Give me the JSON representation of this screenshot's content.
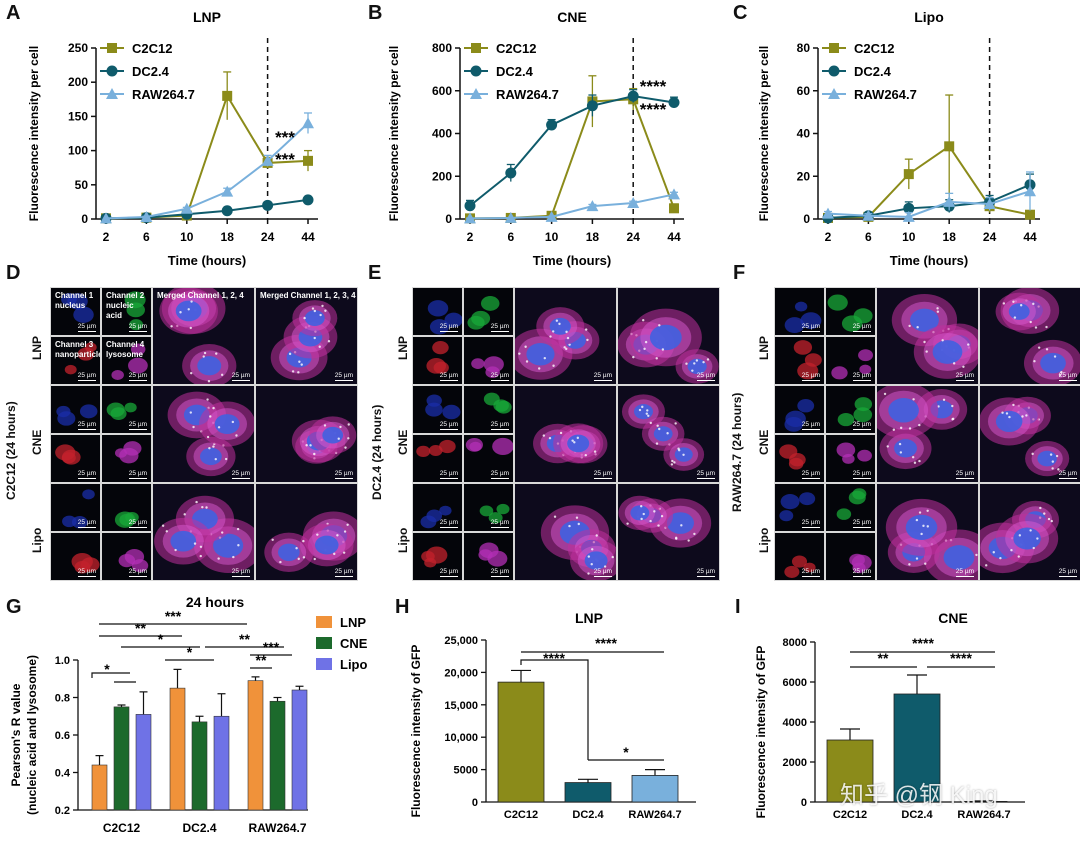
{
  "panels": {
    "A": "A",
    "B": "B",
    "C": "C",
    "D": "D",
    "E": "E",
    "F": "F",
    "G": "G",
    "H": "H",
    "I": "I"
  },
  "micro": {
    "D": {
      "side_label": "C2C12 (24 hours)",
      "rows": [
        "LNP",
        "CNE",
        "Lipo"
      ],
      "captions": [
        "Channel 1 nucleus",
        "Channel 2 nucleic acid",
        "Merged Channel 1, 2, 4",
        "Merged Channel 1, 2, 3, 4",
        "Channel 3 nanoparticle",
        "Channel 4 lysosome"
      ]
    },
    "E": {
      "side_label": "DC2.4 (24 hours)",
      "rows": [
        "LNP",
        "CNE",
        "Lipo"
      ]
    },
    "F": {
      "side_label": "RAW264.7 (24 hours)",
      "rows": [
        "LNP",
        "CNE",
        "Lipo"
      ]
    },
    "scale_bar_large": "25 µm",
    "scale_bar_small": "25 µm"
  },
  "watermark": "知乎 @钢 King",
  "colors": {
    "c2c12": "#8b8b1a",
    "dc24": "#0f5b6b",
    "raw": "#79b0dc",
    "lnp": "#f0923a",
    "cne": "#1c6a2c",
    "lipo": "#6f72e6"
  },
  "chart_data": [
    {
      "id": "A",
      "type": "line",
      "title": "LNP",
      "xlabel": "Time (hours)",
      "ylabel": "Fluorescence intensity per cell",
      "x": [
        2,
        6,
        10,
        18,
        24,
        44
      ],
      "ylim": [
        0,
        250
      ],
      "yticks": [
        0,
        50,
        100,
        150,
        200,
        250
      ],
      "series": [
        {
          "name": "C2C12",
          "values": [
            1,
            2,
            5,
            180,
            82,
            85
          ],
          "errors": [
            1,
            1,
            2,
            35,
            8,
            15
          ]
        },
        {
          "name": "DC2.4",
          "values": [
            1,
            2,
            7,
            12,
            20,
            28
          ],
          "errors": [
            0,
            0,
            1,
            2,
            2,
            3
          ]
        },
        {
          "name": "RAW264.7",
          "values": [
            1,
            3,
            15,
            40,
            85,
            140
          ],
          "errors": [
            0,
            1,
            2,
            5,
            8,
            15
          ]
        }
      ],
      "vline_x": 24,
      "annotations": [
        "***",
        "***"
      ]
    },
    {
      "id": "B",
      "type": "line",
      "title": "CNE",
      "xlabel": "Time (hours)",
      "ylabel": "Fluorescence intensity per cell",
      "x": [
        2,
        6,
        10,
        18,
        24,
        44
      ],
      "ylim": [
        0,
        800
      ],
      "yticks": [
        0,
        200,
        400,
        600,
        800
      ],
      "series": [
        {
          "name": "C2C12",
          "values": [
            3,
            5,
            15,
            550,
            560,
            50
          ],
          "errors": [
            2,
            2,
            5,
            120,
            50,
            20
          ]
        },
        {
          "name": "DC2.4",
          "values": [
            62,
            215,
            440,
            530,
            575,
            545
          ],
          "errors": [
            25,
            40,
            25,
            50,
            30,
            25
          ]
        },
        {
          "name": "RAW264.7",
          "values": [
            3,
            5,
            10,
            60,
            75,
            115
          ],
          "errors": [
            1,
            1,
            3,
            8,
            8,
            10
          ]
        }
      ],
      "vline_x": 24,
      "annotations": [
        "****",
        "****"
      ]
    },
    {
      "id": "C",
      "type": "line",
      "title": "Lipo",
      "xlabel": "Time (hours)",
      "ylabel": "Fluorescence intensity per cell",
      "x": [
        2,
        6,
        10,
        18,
        24,
        44
      ],
      "ylim": [
        0,
        80
      ],
      "yticks": [
        0,
        20,
        40,
        60,
        80
      ],
      "series": [
        {
          "name": "C2C12",
          "values": [
            0.5,
            1,
            21,
            34,
            6,
            2
          ],
          "errors": [
            0.5,
            1,
            7,
            24,
            3,
            1
          ]
        },
        {
          "name": "DC2.4",
          "values": [
            0.5,
            1.5,
            5,
            6,
            8,
            16
          ],
          "errors": [
            0.5,
            1,
            3,
            3,
            3,
            5
          ]
        },
        {
          "name": "RAW264.7",
          "values": [
            2.5,
            1.5,
            1,
            8,
            7,
            13
          ],
          "errors": [
            1,
            1,
            2,
            4,
            3,
            9
          ]
        }
      ],
      "vline_x": 24
    },
    {
      "id": "G",
      "type": "bar",
      "title": "24 hours",
      "xlabel": "",
      "ylabel": "Pearson's R value",
      "ylabel2": "(nucleic acid and lysosome)",
      "categories": [
        "C2C12",
        "DC2.4",
        "RAW264.7"
      ],
      "ylim": [
        0.2,
        1.0
      ],
      "yticks": [
        0.2,
        0.4,
        0.6,
        0.8,
        1.0
      ],
      "series": [
        {
          "name": "LNP",
          "values": [
            0.44,
            0.85,
            0.89
          ],
          "errors": [
            0.05,
            0.1,
            0.02
          ]
        },
        {
          "name": "CNE",
          "values": [
            0.75,
            0.67,
            0.78
          ],
          "errors": [
            0.01,
            0.03,
            0.02
          ]
        },
        {
          "name": "Lipo",
          "values": [
            0.71,
            0.7,
            0.84
          ],
          "errors": [
            0.12,
            0.12,
            0.02
          ]
        }
      ],
      "annotations": [
        "***",
        "**",
        "*",
        "**",
        "*",
        "*",
        "***",
        "**"
      ]
    },
    {
      "id": "H",
      "type": "bar",
      "title": "LNP",
      "xlabel": "",
      "ylabel": "Fluorescence intensity of GFP",
      "categories": [
        "C2C12",
        "DC2.4",
        "RAW264.7"
      ],
      "values": [
        18500,
        3000,
        4100
      ],
      "errors": [
        1800,
        500,
        900
      ],
      "ylim": [
        0,
        25000
      ],
      "yticks": [
        0,
        5000,
        10000,
        15000,
        20000,
        25000
      ],
      "ytick_labels": [
        "0",
        "5000",
        "10,000",
        "15,000",
        "20,000",
        "25,000"
      ],
      "annotations": [
        "****",
        "****",
        "*"
      ]
    },
    {
      "id": "I",
      "type": "bar",
      "title": "CNE",
      "xlabel": "",
      "ylabel": "Fluorescence intensity of GFP",
      "categories": [
        "C2C12",
        "DC2.4",
        "RAW264.7"
      ],
      "values": [
        3100,
        5400,
        30
      ],
      "errors": [
        550,
        950,
        20
      ],
      "ylim": [
        0,
        8000
      ],
      "yticks": [
        0,
        2000,
        4000,
        6000,
        8000
      ],
      "annotations": [
        "****",
        "**",
        "****"
      ]
    }
  ]
}
